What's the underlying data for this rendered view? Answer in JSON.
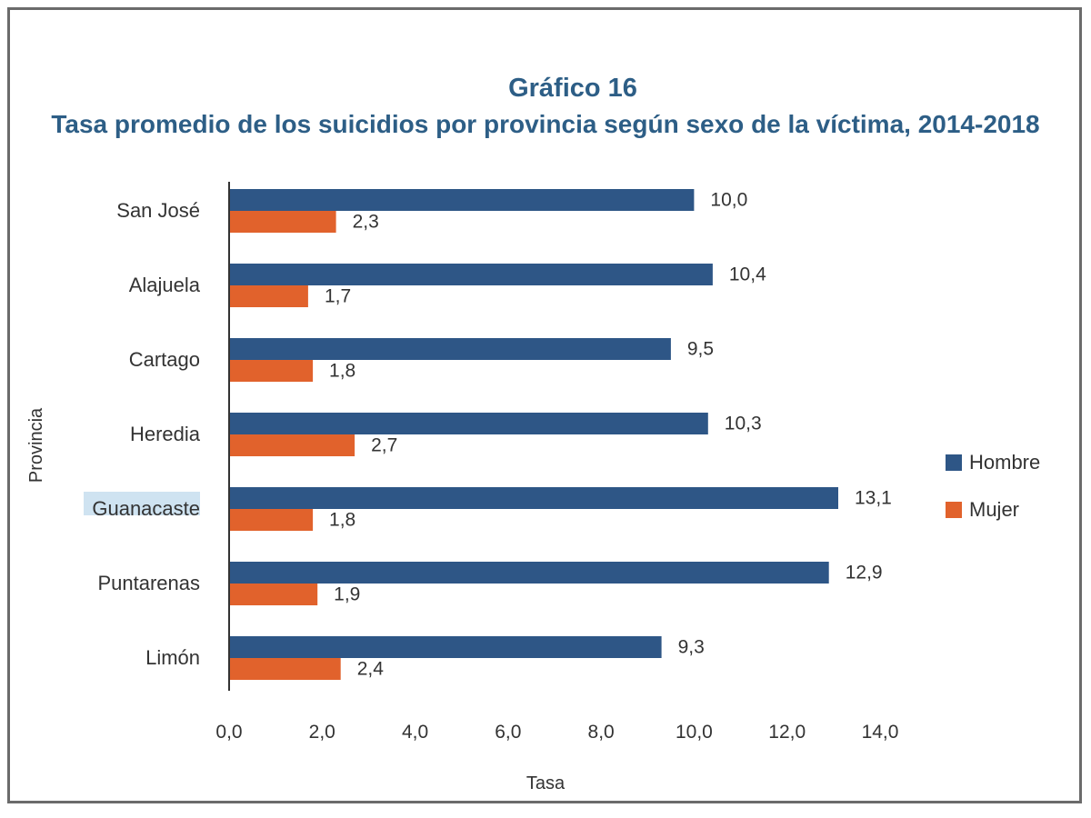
{
  "chart_data": {
    "type": "bar",
    "orientation": "horizontal",
    "title": "Gráfico 16",
    "subtitle": "Tasa promedio de los suicidios por provincia según sexo de la víctima, 2014-2018",
    "xlabel": "Tasa",
    "ylabel": "Provincia",
    "categories": [
      "San José",
      "Alajuela",
      "Cartago",
      "Heredia",
      "Guanacaste",
      "Puntarenas",
      "Limón"
    ],
    "highlighted_category": "Guanacaste",
    "series": [
      {
        "name": "Hombre",
        "color": "#2e5686",
        "values": [
          10.0,
          10.4,
          9.5,
          10.3,
          13.1,
          12.9,
          9.3
        ],
        "labels": [
          "10,0",
          "10,4",
          "9,5",
          "10,3",
          "13,1",
          "12,9",
          "9,3"
        ]
      },
      {
        "name": "Mujer",
        "color": "#e1622c",
        "values": [
          2.3,
          1.7,
          1.8,
          2.7,
          1.8,
          1.9,
          2.4
        ],
        "labels": [
          "2,3",
          "1,7",
          "1,8",
          "2,7",
          "1,8",
          "1,9",
          "2,4"
        ]
      }
    ],
    "xlim": [
      0,
      14
    ],
    "xticks": [
      0,
      2,
      4,
      6,
      8,
      10,
      12,
      14
    ],
    "xtick_labels": [
      "0,0",
      "2,0",
      "4,0",
      "6,0",
      "8,0",
      "10,0",
      "12,0",
      "14,0"
    ],
    "grid": false,
    "legend_position": "right"
  }
}
